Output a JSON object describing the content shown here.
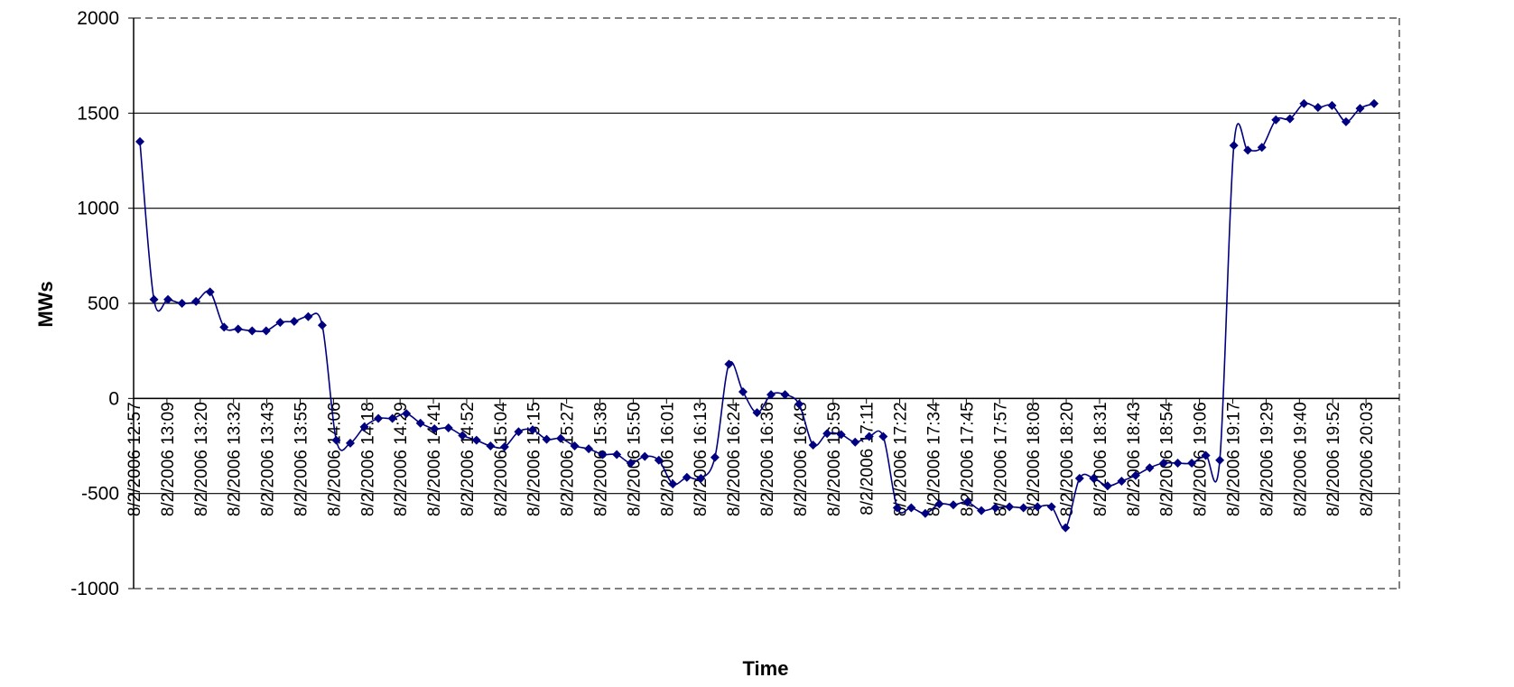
{
  "chart_data": {
    "type": "line",
    "title": "",
    "xlabel": "Time",
    "ylabel": "MWs",
    "ylim": [
      -1000,
      2000
    ],
    "yticks": [
      -1000,
      -500,
      0,
      500,
      1000,
      1500,
      2000
    ],
    "grid": "horizontal major gridlines",
    "legend": "none",
    "colors": {
      "series": "#000080",
      "grid": "#000000",
      "background": "#ffffff"
    },
    "x_tick_labels": [
      "8/2/2006 12:57",
      "8/2/2006 13:09",
      "8/2/2006 13:20",
      "8/2/2006 13:32",
      "8/2/2006 13:43",
      "8/2/2006 13:55",
      "8/2/2006 14:06",
      "8/2/2006 14:18",
      "8/2/2006 14:29",
      "8/2/2006 14:41",
      "8/2/2006 14:52",
      "8/2/2006 15:04",
      "8/2/2006 15:15",
      "8/2/2006 15:27",
      "8/2/2006 15:38",
      "8/2/2006 15:50",
      "8/2/2006 16:01",
      "8/2/2006 16:13",
      "8/2/2006 16:24",
      "8/2/2006 16:36",
      "8/2/2006 16:48",
      "8/2/2006 16:59",
      "8/2/2006 17:11",
      "8/2/2006 17:22",
      "8/2/2006 17:34",
      "8/2/2006 17:45",
      "8/2/2006 17:57",
      "8/2/2006 18:08",
      "8/2/2006 18:20",
      "8/2/2006 18:31",
      "8/2/2006 18:43",
      "8/2/2006 18:54",
      "8/2/2006 19:06",
      "8/2/2006 19:17",
      "8/2/2006 19:29",
      "8/2/2006 19:40",
      "8/2/2006 19:52",
      "8/2/2006 20:03"
    ],
    "series": [
      {
        "values": [
          1350,
          520,
          520,
          500,
          510,
          560,
          375,
          365,
          355,
          355,
          400,
          405,
          430,
          385,
          -220,
          -235,
          -150,
          -105,
          -105,
          -80,
          -130,
          -160,
          -155,
          -195,
          -220,
          -250,
          -255,
          -175,
          -165,
          -215,
          -210,
          -250,
          -265,
          -295,
          -295,
          -340,
          -305,
          -325,
          -450,
          -415,
          -420,
          -310,
          180,
          35,
          -75,
          20,
          20,
          -30,
          -245,
          -185,
          -190,
          -230,
          -200,
          -200,
          -575,
          -575,
          -605,
          -555,
          -560,
          -545,
          -590,
          -575,
          -570,
          -575,
          -570,
          -570,
          -680,
          -420,
          -420,
          -460,
          -435,
          -405,
          -365,
          -340,
          -340,
          -340,
          -300,
          -325,
          1330,
          1305,
          1320,
          1465,
          1470,
          1550,
          1530,
          1540,
          1455,
          1525,
          1550
        ]
      }
    ]
  }
}
